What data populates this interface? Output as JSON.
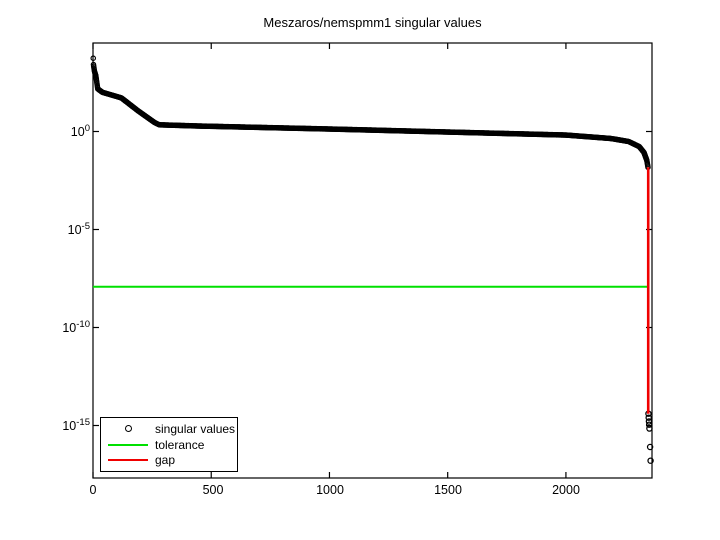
{
  "figure": {
    "background": "#ffffff",
    "axes_color": "#000000"
  },
  "chart_data": {
    "type": "scatter",
    "title": "Meszaros/nemspmm1 singular values",
    "xlabel": "",
    "ylabel": "",
    "x_axis": {
      "range": [
        0,
        2364
      ],
      "ticks": [
        0,
        500,
        1000,
        1500,
        2000
      ],
      "tick_labels": [
        "0",
        "500",
        "1000",
        "1500",
        "2000"
      ]
    },
    "y_axis": {
      "scale": "log",
      "range_exponents": [
        -17.7,
        4.5
      ],
      "tick_values": [
        1,
        1e-05,
        1e-10,
        1e-15
      ],
      "tick_labels": [
        {
          "base": "10",
          "exp": "0"
        },
        {
          "base": "10",
          "exp": "-5"
        },
        {
          "base": "10",
          "exp": "-10"
        },
        {
          "base": "10",
          "exp": "-15"
        }
      ]
    },
    "grid": false,
    "legend": {
      "position": "southwest",
      "entries": [
        {
          "label": "singular values",
          "marker": "circle",
          "color": "#000000"
        },
        {
          "label": "tolerance",
          "marker": "line",
          "color": "#00e000"
        },
        {
          "label": "gap",
          "marker": "line",
          "color": "#f00000"
        }
      ]
    },
    "series": {
      "singular_values": {
        "marker": "o",
        "color": "#000000",
        "count": 2364,
        "numerical_rank": 2347,
        "profile_points": [
          [
            1,
            5500
          ],
          [
            2,
            2600
          ],
          [
            6,
            1200
          ],
          [
            12,
            700
          ],
          [
            20,
            150
          ],
          [
            40,
            100
          ],
          [
            120,
            52
          ],
          [
            190,
            11.5
          ],
          [
            260,
            2.9
          ],
          [
            280,
            2.2
          ],
          [
            450,
            1.9
          ],
          [
            1000,
            1.34
          ],
          [
            1500,
            0.94
          ],
          [
            2000,
            0.66
          ],
          [
            2190,
            0.44
          ],
          [
            2265,
            0.31
          ],
          [
            2310,
            0.17
          ],
          [
            2330,
            0.085
          ],
          [
            2342,
            0.034
          ],
          [
            2347,
            0.015
          ]
        ],
        "trailing_points": [
          [
            2349,
            4e-15
          ],
          [
            2350,
            2.5e-15
          ],
          [
            2351,
            1.6e-15
          ],
          [
            2352,
            1.1e-15
          ],
          [
            2353,
            7e-16
          ],
          [
            2356,
            8e-17
          ],
          [
            2358,
            1.6e-17
          ]
        ]
      },
      "tolerance": {
        "value": 1.2e-08,
        "color": "#00e000"
      },
      "gap": {
        "x": 2348,
        "from": 0.015,
        "to": 4e-15,
        "color": "#f00000"
      }
    }
  }
}
